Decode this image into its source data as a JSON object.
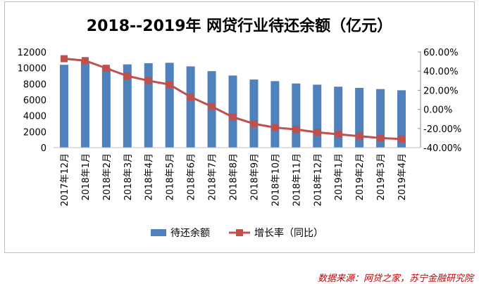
{
  "chart_data": {
    "type": "bar",
    "title": "2018--2019年 网贷行业待还余额（亿元）",
    "categories": [
      "2017年12月",
      "2018年1月",
      "2018年2月",
      "2018年3月",
      "2018年4月",
      "2018年5月",
      "2018年6月",
      "2018年7月",
      "2018年8月",
      "2018年9月",
      "2018年10月",
      "2018年11月",
      "2018年12月",
      "2019年1月",
      "2019年2月",
      "2019年3月",
      "2019年4月"
    ],
    "series": [
      {
        "name": "待还余额",
        "type": "bar",
        "axis": "left",
        "color": "#4f81bd",
        "values": [
          10400,
          10900,
          10000,
          10450,
          10600,
          10650,
          10200,
          9600,
          9050,
          8550,
          8350,
          8050,
          7900,
          7650,
          7500,
          7350,
          7200
        ]
      },
      {
        "name": "增长率（同比）",
        "type": "line",
        "axis": "right",
        "color": "#c0504d",
        "values": [
          0.53,
          0.51,
          0.43,
          0.35,
          0.3,
          0.26,
          0.13,
          0.03,
          -0.08,
          -0.15,
          -0.19,
          -0.21,
          -0.24,
          -0.26,
          -0.28,
          -0.3,
          -0.31
        ]
      }
    ],
    "y_left": {
      "ylim": [
        0,
        12000
      ],
      "ticks": [
        "0",
        "2000",
        "4000",
        "6000",
        "8000",
        "10000",
        "12000"
      ]
    },
    "y_right": {
      "ylim": [
        -0.4,
        0.6
      ],
      "ticks": [
        "-40.00%",
        "-20.00%",
        "0.00%",
        "20.00%",
        "40.00%",
        "60.00%"
      ]
    },
    "legend": {
      "placement": "bottom"
    },
    "grid": false
  },
  "source_text": "数据来源：网贷之家，苏宁金融研究院"
}
